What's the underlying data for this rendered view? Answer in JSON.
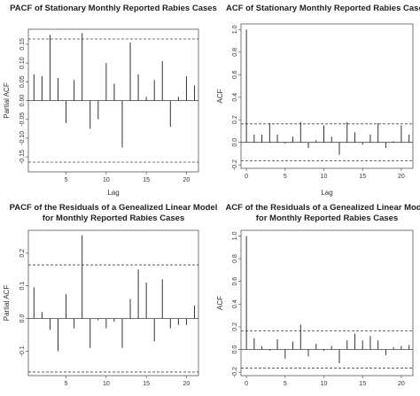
{
  "chart_data": [
    {
      "type": "bar",
      "title": [
        "PACF of Stationary Monthly Reported Rabies Cases"
      ],
      "xlabel": "Lag",
      "ylabel": "Partial ACF",
      "xlim": [
        0.3,
        21.5
      ],
      "ylim": [
        -0.19,
        0.19
      ],
      "xticks": [
        5,
        10,
        15,
        20
      ],
      "yticks": [
        -0.15,
        -0.1,
        -0.05,
        0.0,
        0.05,
        0.1,
        0.15
      ],
      "ytick_labels": [
        "-0.15",
        "-0.10",
        "-0.05",
        "0.00",
        "0.05",
        "0.10",
        "0.15"
      ],
      "ci": 0.164,
      "x": [
        1,
        2,
        3,
        4,
        5,
        6,
        7,
        8,
        9,
        10,
        11,
        12,
        13,
        14,
        15,
        16,
        17,
        18,
        19,
        20,
        21
      ],
      "values": [
        0.07,
        0.065,
        0.175,
        0.06,
        -0.06,
        0.055,
        0.18,
        -0.075,
        -0.05,
        0.1,
        0.045,
        -0.125,
        0.155,
        0.07,
        0.01,
        0.055,
        0.105,
        -0.07,
        0.01,
        0.065,
        0.04
      ]
    },
    {
      "type": "bar",
      "title": [
        "ACF of Stationary Monthly Reported Rabies Cases"
      ],
      "xlabel": "Lag",
      "ylabel": "ACF",
      "xlim": [
        -0.7,
        21.5
      ],
      "ylim": [
        -0.23,
        1.05
      ],
      "xticks": [
        0,
        5,
        10,
        15,
        20
      ],
      "yticks": [
        -0.2,
        0.0,
        0.2,
        0.4,
        0.6,
        0.8,
        1.0
      ],
      "ytick_labels": [
        "-0.2",
        "0.0",
        "0.2",
        "0.4",
        "0.6",
        "0.8",
        "1.0"
      ],
      "ci": 0.164,
      "x": [
        0,
        1,
        2,
        3,
        4,
        5,
        6,
        7,
        8,
        9,
        10,
        11,
        12,
        13,
        14,
        15,
        16,
        17,
        18,
        19,
        20,
        21
      ],
      "values": [
        1.0,
        0.07,
        0.07,
        0.17,
        0.07,
        -0.01,
        0.05,
        0.18,
        -0.05,
        0.02,
        0.15,
        0.05,
        -0.11,
        0.18,
        0.09,
        -0.02,
        0.07,
        0.17,
        -0.05,
        0.01,
        0.15,
        0.07
      ]
    },
    {
      "type": "bar",
      "title": [
        "PACF of the Residuals of a Genealized Linear Model",
        "for Monthly Reported Rabies Cases"
      ],
      "xlabel": "",
      "ylabel": "Partial ACF",
      "xlim": [
        0.3,
        21.5
      ],
      "ylim": [
        -0.175,
        0.27
      ],
      "xticks": [
        5,
        10,
        15,
        20
      ],
      "yticks": [
        -0.1,
        0.0,
        0.1,
        0.2
      ],
      "ytick_labels": [
        "-0.1",
        "0.0",
        "0.1",
        "0.2"
      ],
      "ci": 0.164,
      "x": [
        1,
        2,
        3,
        4,
        5,
        6,
        7,
        8,
        9,
        10,
        11,
        12,
        13,
        14,
        15,
        16,
        17,
        18,
        19,
        20,
        21
      ],
      "values": [
        0.095,
        0.02,
        -0.035,
        -0.1,
        0.075,
        -0.03,
        0.255,
        -0.09,
        -0.005,
        -0.03,
        -0.01,
        -0.09,
        0.06,
        0.15,
        0.11,
        -0.07,
        0.12,
        -0.03,
        -0.02,
        -0.02,
        0.04
      ]
    },
    {
      "type": "bar",
      "title": [
        "ACF of the Residuals of a Genealized Linear Model",
        "for Monthly Reported Rabies Cases"
      ],
      "xlabel": "",
      "ylabel": "ACF",
      "xlim": [
        -0.7,
        21.5
      ],
      "ylim": [
        -0.23,
        1.05
      ],
      "xticks": [
        0,
        5,
        10,
        15,
        20
      ],
      "yticks": [
        -0.2,
        0.0,
        0.2,
        0.4,
        0.6,
        0.8,
        1.0
      ],
      "ytick_labels": [
        "-0.2",
        "0.0",
        "0.2",
        "0.4",
        "0.6",
        "0.8",
        "1.0"
      ],
      "ci": 0.164,
      "x": [
        0,
        1,
        2,
        3,
        4,
        5,
        6,
        7,
        8,
        9,
        10,
        11,
        12,
        13,
        14,
        15,
        16,
        17,
        18,
        19,
        20,
        21
      ],
      "values": [
        1.0,
        0.1,
        0.03,
        -0.01,
        0.09,
        -0.08,
        0.07,
        0.22,
        -0.06,
        0.05,
        -0.01,
        0.03,
        -0.12,
        0.08,
        0.14,
        0.08,
        0.12,
        0.08,
        -0.05,
        0.02,
        0.03,
        0.04
      ]
    }
  ]
}
